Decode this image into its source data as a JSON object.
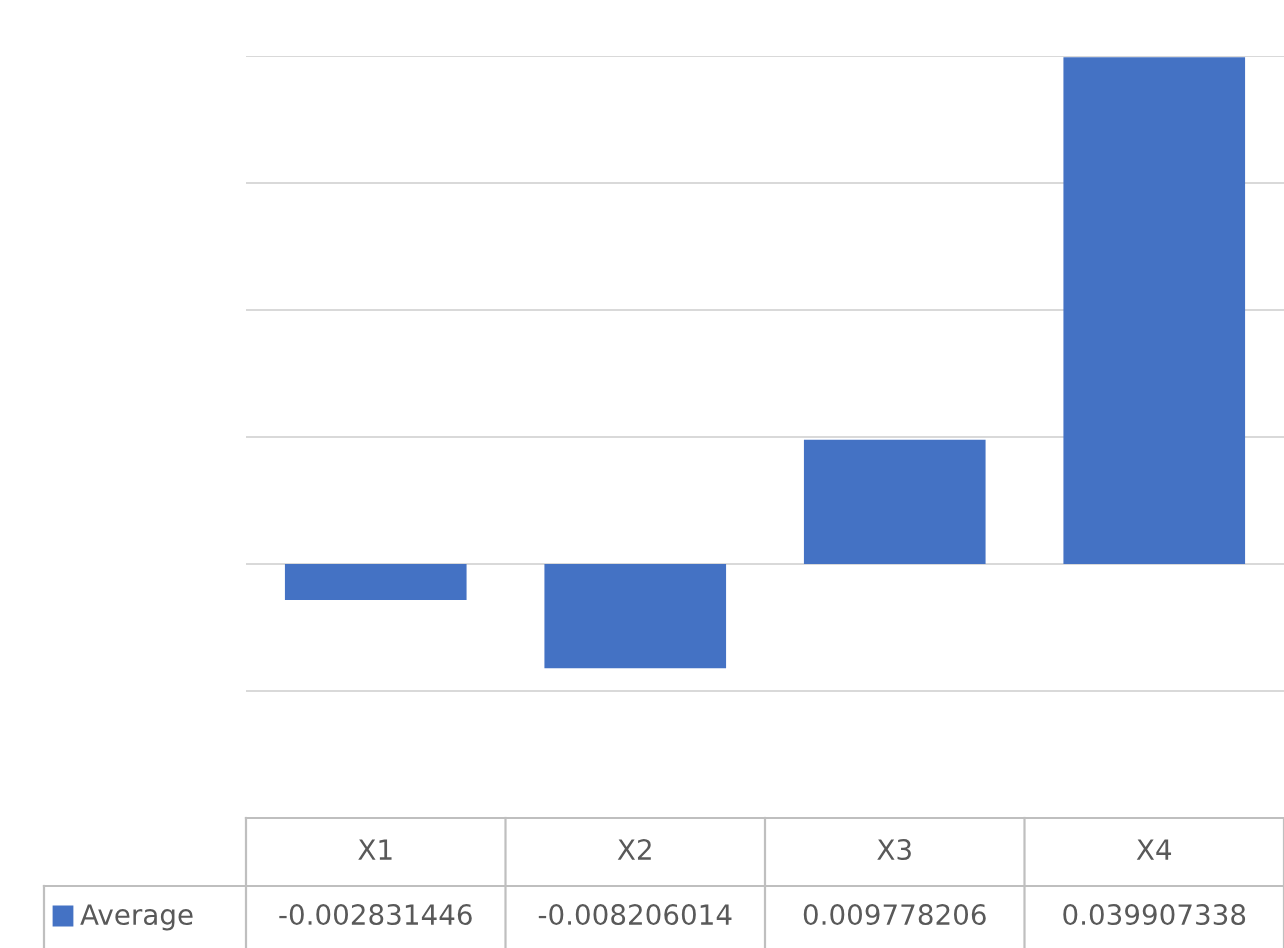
{
  "chart_data": {
    "type": "bar",
    "categories": [
      "X1",
      "X2",
      "X3",
      "X4"
    ],
    "series": [
      {
        "name": "Average",
        "color": "#4472c4",
        "values": [
          -0.002831446,
          -0.008206014,
          0.009778206,
          0.039907338
        ]
      }
    ],
    "ylim": [
      -0.02,
      0.04
    ],
    "yticks": [
      {
        "value": -0.02,
        "label": null
      },
      {
        "value": -0.01,
        "label": null
      },
      {
        "value": 0,
        "label": null
      },
      {
        "value": 0.01,
        "label": null
      },
      {
        "value": 0.02,
        "label": null
      },
      {
        "value": 0.03,
        "label": null
      },
      {
        "value": 0.04,
        "label": null
      }
    ],
    "grid": "y",
    "tick_labels": "x",
    "data_labels": true
  }
}
